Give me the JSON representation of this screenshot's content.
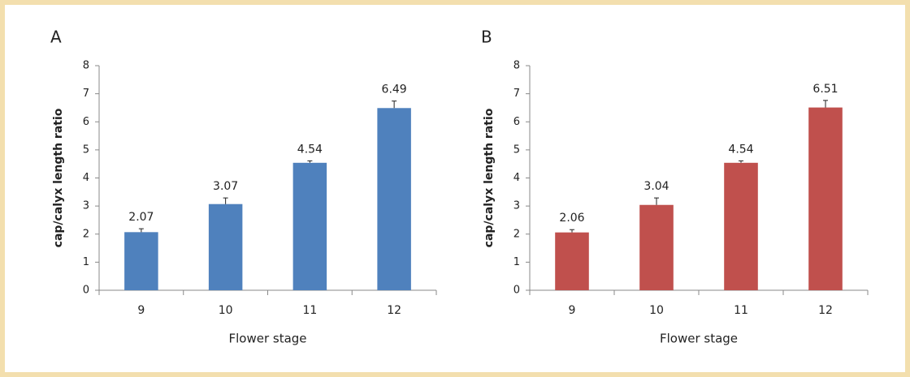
{
  "chart_data": [
    {
      "type": "bar",
      "title": "A",
      "y_label": "cap/calyx length ratio",
      "x_label": "Flower stage",
      "categories": [
        "9",
        "10",
        "11",
        "12"
      ],
      "values": [
        2.07,
        3.07,
        4.54,
        6.49
      ],
      "errors": [
        0.12,
        0.22,
        0.07,
        0.25
      ],
      "color": "#4f81bd",
      "ylim": [
        0,
        8
      ],
      "yticks": [
        0,
        1,
        2,
        3,
        4,
        5,
        6,
        7,
        8
      ]
    },
    {
      "type": "bar",
      "title": "B",
      "y_label": "cap/calyx length ratio",
      "x_label": "Flower stage",
      "categories": [
        "9",
        "10",
        "11",
        "12"
      ],
      "values": [
        2.06,
        3.04,
        4.54,
        6.51
      ],
      "errors": [
        0.1,
        0.25,
        0.07,
        0.25
      ],
      "color": "#c0504d",
      "ylim": [
        0,
        8
      ],
      "yticks": [
        0,
        1,
        2,
        3,
        4,
        5,
        6,
        7,
        8
      ]
    }
  ]
}
